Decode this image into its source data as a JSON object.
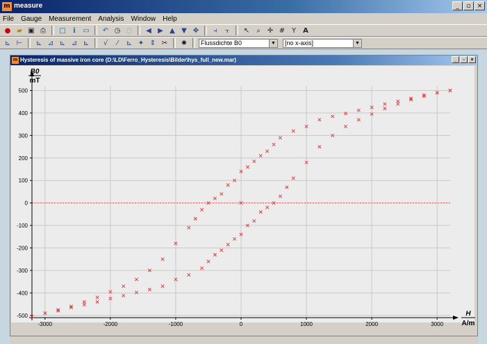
{
  "app": {
    "title": "measure",
    "logo_text": "m"
  },
  "window_controls": {
    "minimize": "_",
    "maximize": "▫",
    "close": "×"
  },
  "menu": [
    "File",
    "Gauge",
    "Measurement",
    "Analysis",
    "Window",
    "Help"
  ],
  "toolbar": {
    "y_axis_select": "Flussdichte B0",
    "x_axis_select": "[no x-axis]"
  },
  "child_window": {
    "title": "Hysteresis of massive iron core (D:\\LD\\Ferro_Hysteresis\\Bilder\\hys_full_new.mar)",
    "logo_text": "m"
  },
  "colors": {
    "series": "#ee3030",
    "zero_line": "#ff5050",
    "grid": "#c8c8c8"
  },
  "icons": [
    "new-icon",
    "open-icon",
    "save-icon",
    "print-icon",
    "window-icon",
    "info-icon",
    "screen-icon",
    "undo-icon",
    "clock-icon",
    "stop-icon",
    "arrow-left-icon",
    "arrow-right-icon",
    "arrow-up-icon",
    "arrow-down-icon",
    "move-icon",
    "axes-icon",
    "zoom-icon",
    "crosshair-icon",
    "grid-icon",
    "fit-icon",
    "text-icon"
  ],
  "chart_data": {
    "type": "scatter",
    "title": "",
    "xlabel": "H",
    "xunit": "A/m",
    "ylabel": "B0",
    "yunit": "mT",
    "xlim": [
      -3200,
      3200
    ],
    "ylim": [
      -510,
      520
    ],
    "xticks": [
      -3000,
      -2000,
      -1000,
      0,
      1000,
      2000,
      3000
    ],
    "yticks": [
      -500,
      -400,
      -300,
      -200,
      -100,
      0,
      100,
      200,
      300,
      400,
      500
    ],
    "grid": true,
    "reference_line": {
      "y": 0,
      "style": "dotted"
    },
    "series": [
      {
        "marker": "x",
        "x": [
          3200,
          3000,
          2800,
          2600,
          2400,
          2200,
          2000,
          1800,
          1600,
          1400,
          1200,
          1000,
          800,
          600,
          500,
          400,
          300,
          200,
          100,
          0,
          -100,
          -200,
          -300,
          -400,
          -500,
          -600,
          -700,
          -800,
          -1000,
          -1200,
          -1400,
          -1600,
          -1800,
          -2000,
          -2200,
          -2400,
          -2600,
          -2800,
          -3000,
          -3200
        ],
        "y": [
          500,
          490,
          480,
          465,
          452,
          440,
          425,
          412,
          398,
          385,
          370,
          340,
          320,
          290,
          260,
          230,
          210,
          185,
          160,
          140,
          100,
          80,
          40,
          20,
          0,
          -30,
          -70,
          -110,
          -180,
          -250,
          -300,
          -340,
          -370,
          -395,
          -420,
          -440,
          -460,
          -475,
          -490,
          -505
        ]
      },
      {
        "marker": "x",
        "x": [
          -3200,
          -3000,
          -2800,
          -2600,
          -2400,
          -2200,
          -2000,
          -1800,
          -1600,
          -1400,
          -1200,
          -1000,
          -800,
          -600,
          -500,
          -400,
          -300,
          -200,
          -100,
          0,
          100,
          200,
          300,
          400,
          500,
          600,
          700,
          800,
          1000,
          1200,
          1400,
          1600,
          1800,
          2000,
          2200,
          2400,
          2600,
          2800,
          3000,
          3200
        ],
        "y": [
          -505,
          -490,
          -480,
          -465,
          -452,
          -440,
          -425,
          -412,
          -398,
          -385,
          -370,
          -340,
          -320,
          -290,
          -260,
          -230,
          -210,
          -185,
          -160,
          -140,
          -100,
          -80,
          -40,
          -20,
          0,
          30,
          70,
          110,
          180,
          250,
          300,
          340,
          370,
          395,
          420,
          440,
          460,
          475,
          490,
          500
        ]
      },
      {
        "marker": "x",
        "x": [
          0
        ],
        "y": [
          0
        ]
      }
    ]
  }
}
